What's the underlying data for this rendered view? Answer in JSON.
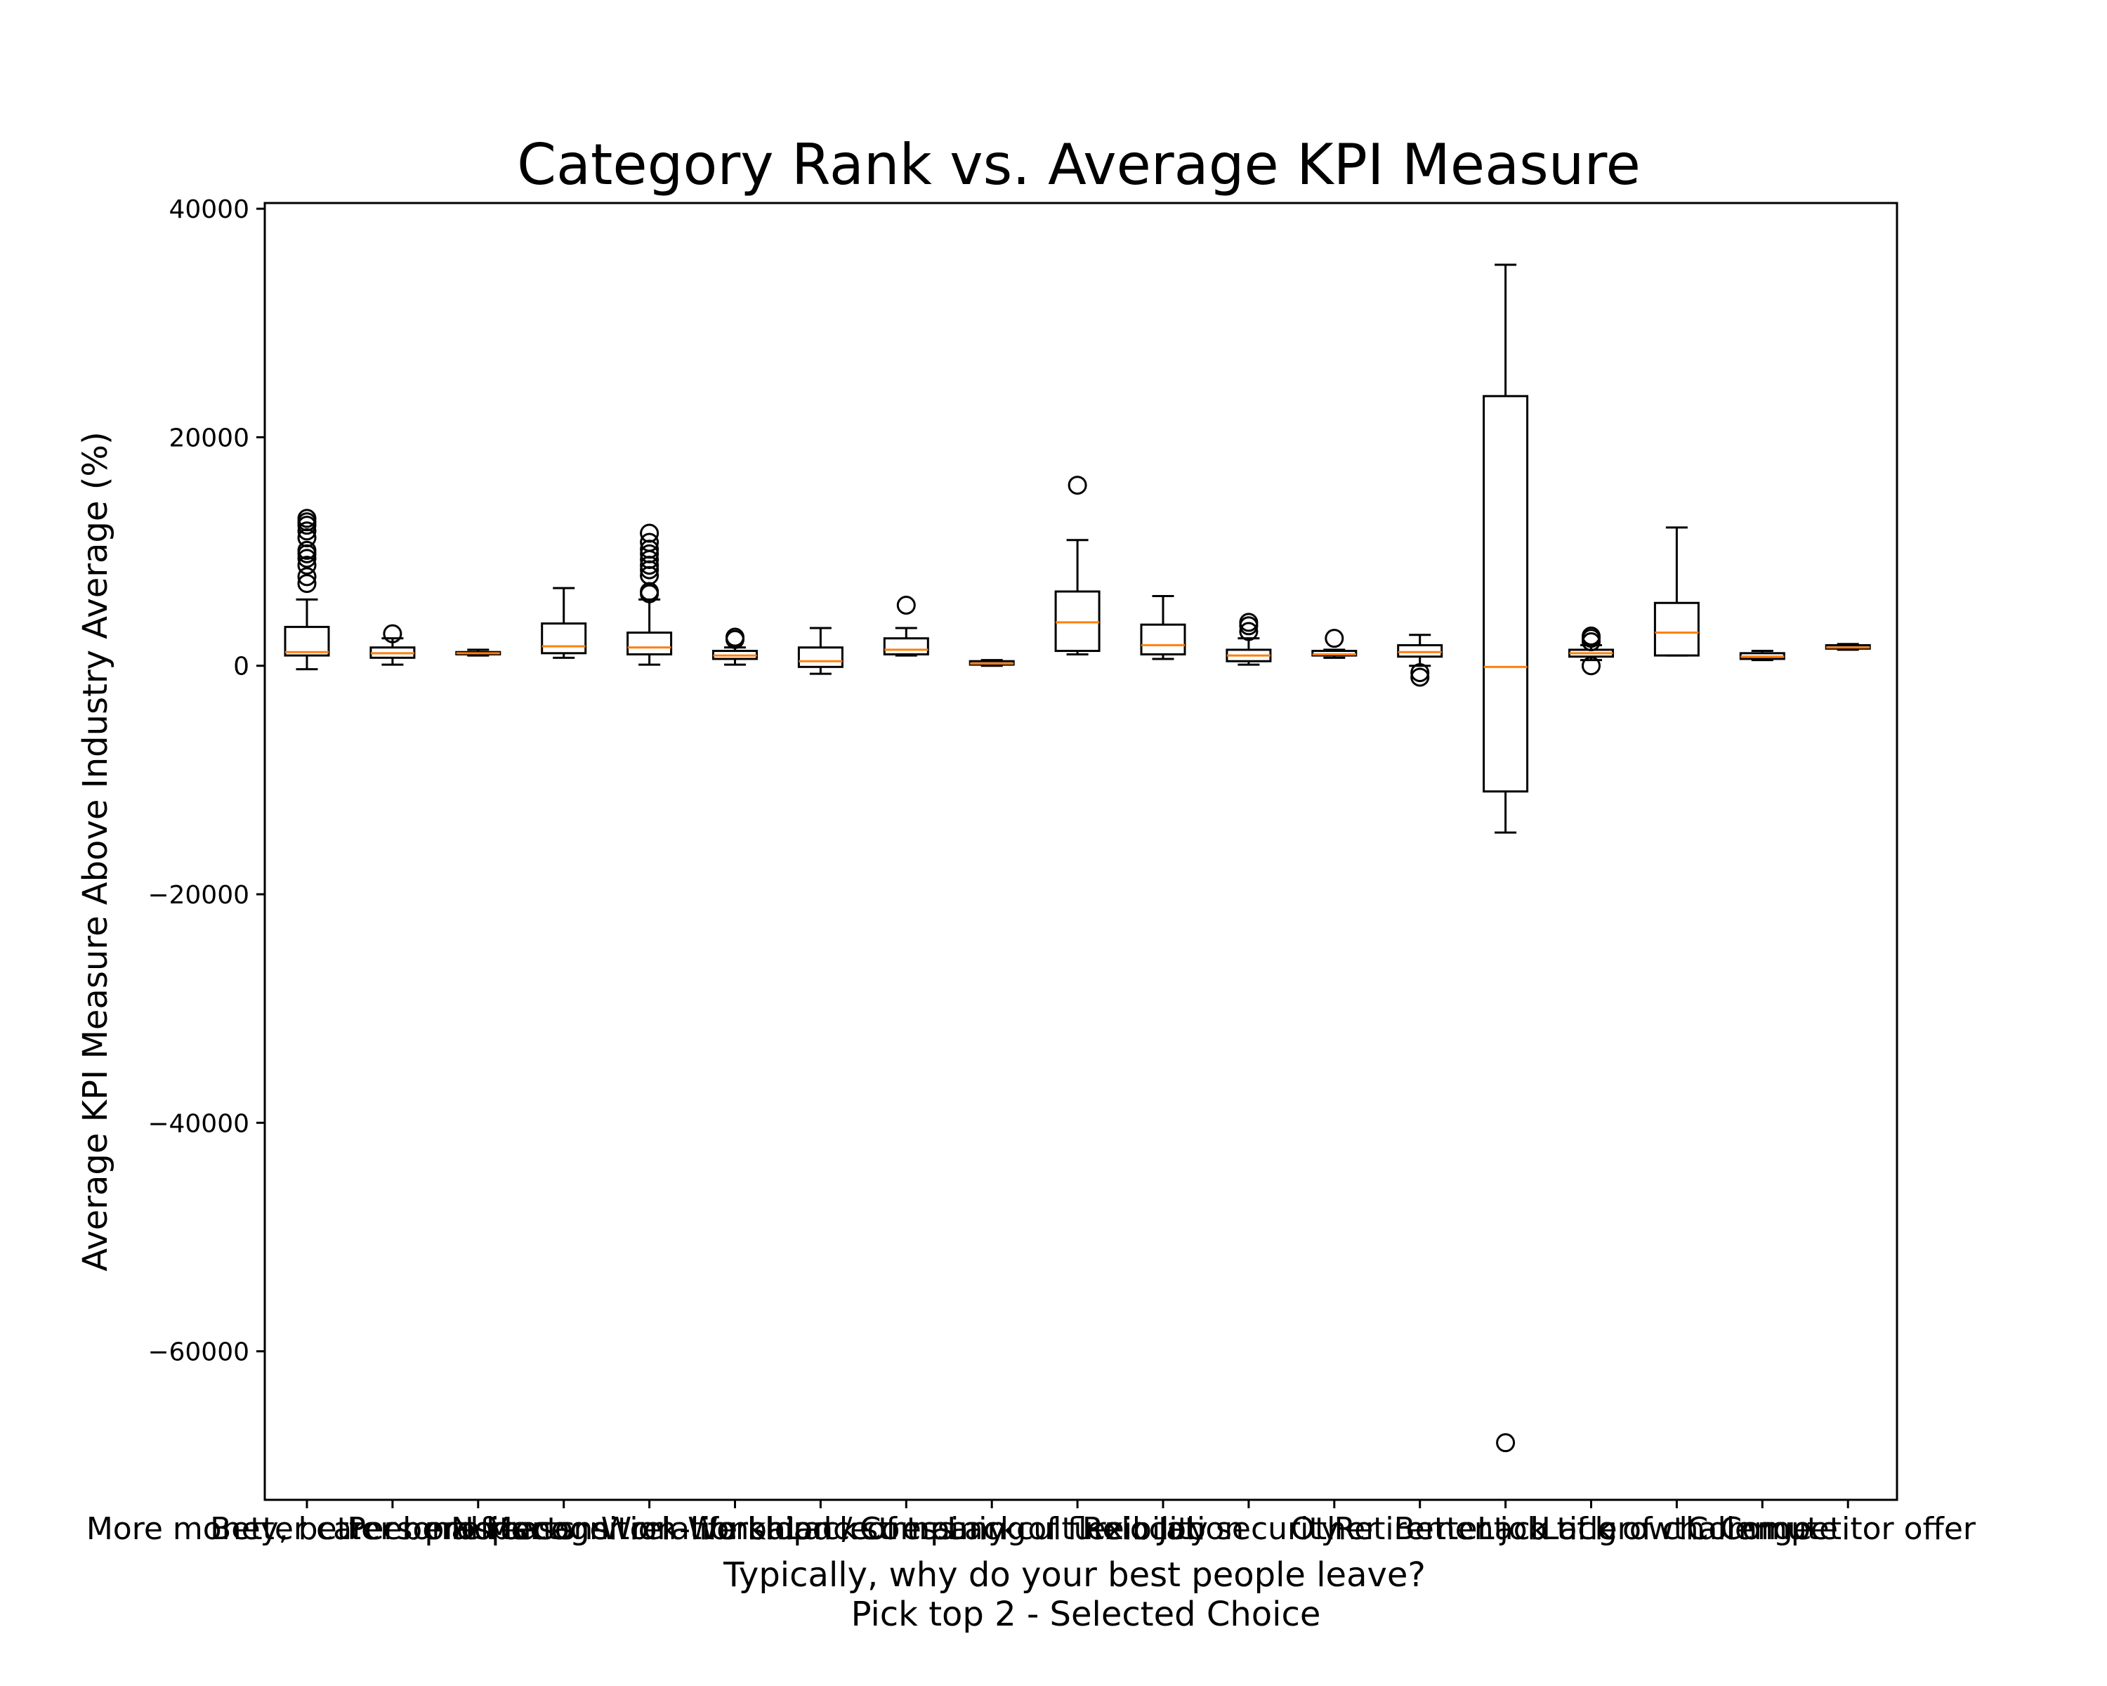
{
  "chart_data": {
    "type": "box",
    "title": "Category Rank vs. Average KPI Measure",
    "xlabel": "Typically, why do your best people leave?",
    "xlabel_line2": "Pick top 2 - Selected Choice",
    "ylabel": "Average KPI Measure Above Industry Average (%)",
    "ylim": [
      -73000,
      40500
    ],
    "yticks": [
      40000,
      20000,
      0,
      -20000,
      -40000,
      -60000
    ],
    "ytick_labels": [
      "40000",
      "20000",
      "0",
      "−20000",
      "−40000",
      "−60000"
    ],
    "colors": {
      "box": "#000000",
      "median": "#ff7f0e",
      "axes": "#000000",
      "background": "#ffffff"
    },
    "categories": [
      "More money, better benefits",
      "Better career prospects",
      "Personal reasons",
      "No recognition",
      "Manager relationship",
      "Work-life balance",
      "Workload / stress",
      "Lack of training",
      "Company culture",
      "Lack of flexibility",
      "Relocation",
      "Job security",
      "Other",
      "Retirement",
      "Better job title",
      "Lack of growth",
      "Lack of challenge",
      "Commute",
      "Competitor offer"
    ],
    "boxes": [
      {
        "whisker_low": -300,
        "q1": 900,
        "median": 1200,
        "q3": 3400,
        "whisker_high": 5800,
        "outliers": [
          7200,
          7800,
          8800,
          9400,
          9800,
          10100,
          11200,
          11800,
          12300,
          12600,
          12900
        ]
      },
      {
        "whisker_low": 100,
        "q1": 700,
        "median": 1100,
        "q3": 1600,
        "whisker_high": 2400,
        "outliers": [
          2800
        ]
      },
      {
        "whisker_low": 900,
        "q1": 1000,
        "median": 1100,
        "q3": 1200,
        "whisker_high": 1400,
        "outliers": []
      },
      {
        "whisker_low": 700,
        "q1": 1100,
        "median": 1700,
        "q3": 3700,
        "whisker_high": 6800,
        "outliers": []
      },
      {
        "whisker_low": 100,
        "q1": 1000,
        "median": 1600,
        "q3": 2900,
        "whisker_high": 5800,
        "outliers": [
          6300,
          6500,
          7900,
          8400,
          8800,
          9300,
          9800,
          10200,
          10800,
          11600
        ]
      },
      {
        "whisker_low": 100,
        "q1": 600,
        "median": 900,
        "q3": 1300,
        "whisker_high": 1600,
        "outliers": [
          2300,
          2500
        ]
      },
      {
        "whisker_low": -700,
        "q1": -100,
        "median": 400,
        "q3": 1600,
        "whisker_high": 3300,
        "outliers": []
      },
      {
        "whisker_low": 900,
        "q1": 1000,
        "median": 1400,
        "q3": 2400,
        "whisker_high": 3300,
        "outliers": [
          5300
        ]
      },
      {
        "whisker_low": 0,
        "q1": 100,
        "median": 200,
        "q3": 400,
        "whisker_high": 500,
        "outliers": []
      },
      {
        "whisker_low": 1000,
        "q1": 1300,
        "median": 3800,
        "q3": 6500,
        "whisker_high": 11000,
        "outliers": [
          15800
        ]
      },
      {
        "whisker_low": 600,
        "q1": 1000,
        "median": 1800,
        "q3": 3600,
        "whisker_high": 6100,
        "outliers": []
      },
      {
        "whisker_low": 100,
        "q1": 400,
        "median": 900,
        "q3": 1400,
        "whisker_high": 2400,
        "outliers": [
          3000,
          3500,
          3800
        ]
      },
      {
        "whisker_low": 700,
        "q1": 900,
        "median": 1000,
        "q3": 1300,
        "whisker_high": 1400,
        "outliers": [
          2400
        ]
      },
      {
        "whisker_low": 0,
        "q1": 800,
        "median": 1200,
        "q3": 1800,
        "whisker_high": 2700,
        "outliers": [
          -600,
          -1000
        ]
      },
      {
        "whisker_low": -14600,
        "q1": -11000,
        "median": -100,
        "q3": 23600,
        "whisker_high": 35100,
        "outliers": [
          -68000
        ]
      },
      {
        "whisker_low": 500,
        "q1": 800,
        "median": 1100,
        "q3": 1400,
        "whisker_high": 1800,
        "outliers": [
          0,
          2100,
          2400,
          2600
        ]
      },
      {
        "whisker_low": 900,
        "q1": 900,
        "median": 2900,
        "q3": 5500,
        "whisker_high": 12100,
        "outliers": []
      },
      {
        "whisker_low": 500,
        "q1": 600,
        "median": 800,
        "q3": 1100,
        "whisker_high": 1300,
        "outliers": []
      },
      {
        "whisker_low": 1400,
        "q1": 1500,
        "median": 1600,
        "q3": 1800,
        "whisker_high": 1900,
        "outliers": []
      }
    ]
  }
}
